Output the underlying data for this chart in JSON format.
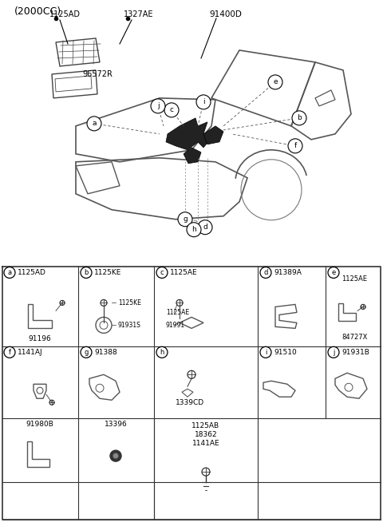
{
  "title": "(2000CC)",
  "part_number_main": "91400D",
  "part_number_sub": "96572R",
  "part_labels_top": [
    "1125AD",
    "1327AE"
  ],
  "callout_labels": [
    "a",
    "b",
    "c",
    "d",
    "e",
    "f",
    "g",
    "h",
    "i",
    "j"
  ],
  "bg_color": "#ffffff",
  "line_color": "#000000",
  "table": {
    "rows": 4,
    "cols": 5,
    "cells": [
      {
        "row": 0,
        "col": 0,
        "label": "a",
        "parts": [
          "1125AD",
          "91196"
        ],
        "has_circle": true
      },
      {
        "row": 0,
        "col": 1,
        "label": "b",
        "parts": [
          "1125KE",
          "91931S"
        ],
        "has_circle": true
      },
      {
        "row": 0,
        "col": 2,
        "label": "c",
        "parts": [
          "1125AE",
          "91991"
        ],
        "has_circle": true
      },
      {
        "row": 0,
        "col": 3,
        "label": "d",
        "parts": [
          "91389A"
        ],
        "has_circle": true,
        "header_only": true
      },
      {
        "row": 0,
        "col": 4,
        "label": "e",
        "parts": [
          "1125AE",
          "84727X"
        ],
        "has_circle": true
      },
      {
        "row": 1,
        "col": 0,
        "label": "f",
        "parts": [
          "1141AJ"
        ],
        "has_circle": true
      },
      {
        "row": 1,
        "col": 1,
        "label": "g",
        "parts": [
          "91388"
        ],
        "has_circle": true,
        "header_part": true
      },
      {
        "row": 1,
        "col": 2,
        "label": "h",
        "parts": [
          "1339CD"
        ],
        "has_circle": true
      },
      {
        "row": 1,
        "col": 3,
        "label": "i",
        "parts": [
          "91510"
        ],
        "has_circle": true,
        "header_only": true
      },
      {
        "row": 1,
        "col": 4,
        "label": "j",
        "parts": [
          "91931B"
        ],
        "has_circle": true,
        "header_only": true
      },
      {
        "row": 2,
        "col": 0,
        "label": "",
        "parts": [
          "91980B"
        ],
        "has_circle": false
      },
      {
        "row": 2,
        "col": 1,
        "label": "",
        "parts": [
          "13396"
        ],
        "has_circle": false
      },
      {
        "row": 2,
        "col": 2,
        "label": "",
        "parts": [],
        "has_circle": false
      },
      {
        "row": 3,
        "col": 0,
        "label": "",
        "parts": [],
        "has_circle": false,
        "has_bracket_img": true
      },
      {
        "row": 3,
        "col": 1,
        "label": "",
        "parts": [],
        "has_circle": false,
        "has_dot_img": true
      },
      {
        "row": 3,
        "col": 2,
        "label": "",
        "parts": [
          "1125AB",
          "18362",
          "1141AE"
        ],
        "has_circle": false,
        "has_bolt_img": true
      }
    ]
  }
}
